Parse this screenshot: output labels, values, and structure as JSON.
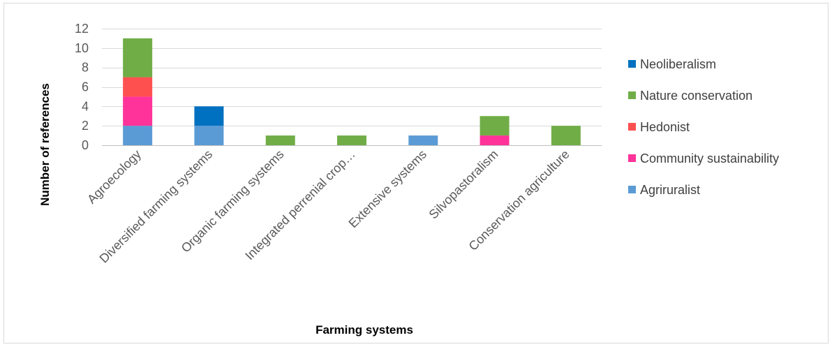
{
  "chart_data": {
    "type": "bar",
    "stacked": true,
    "title": "",
    "xlabel": "Farming systems",
    "ylabel": "Number of references",
    "ylim": [
      0,
      12
    ],
    "yticks": [
      0,
      2,
      4,
      6,
      8,
      10,
      12
    ],
    "grid": true,
    "legend_position": "right",
    "categories": [
      "Agroecology",
      "Diversified farming systems",
      "Organic farming systems",
      "Integrated perrenial crop…",
      "Extensive systems",
      "Silvopastoralism",
      "Conservation agriculture"
    ],
    "series": [
      {
        "name": "Agriruralist",
        "color": "#5b9bd5",
        "values": [
          2,
          2,
          0,
          0,
          1,
          0,
          0
        ]
      },
      {
        "name": "Community sustainability",
        "color": "#ff3399",
        "values": [
          3,
          0,
          0,
          0,
          0,
          1,
          0
        ]
      },
      {
        "name": "Hedonist",
        "color": "#ff5050",
        "values": [
          2,
          0,
          0,
          0,
          0,
          0,
          0
        ]
      },
      {
        "name": "Nature conservation",
        "color": "#70ad47",
        "values": [
          4,
          0,
          1,
          1,
          0,
          2,
          2
        ]
      },
      {
        "name": "Neoliberalism",
        "color": "#0070c0",
        "values": [
          0,
          2,
          0,
          0,
          0,
          0,
          0
        ]
      }
    ],
    "legend_order": [
      "Neoliberalism",
      "Nature conservation",
      "Hedonist",
      "Community sustainability",
      "Agriruralist"
    ]
  }
}
